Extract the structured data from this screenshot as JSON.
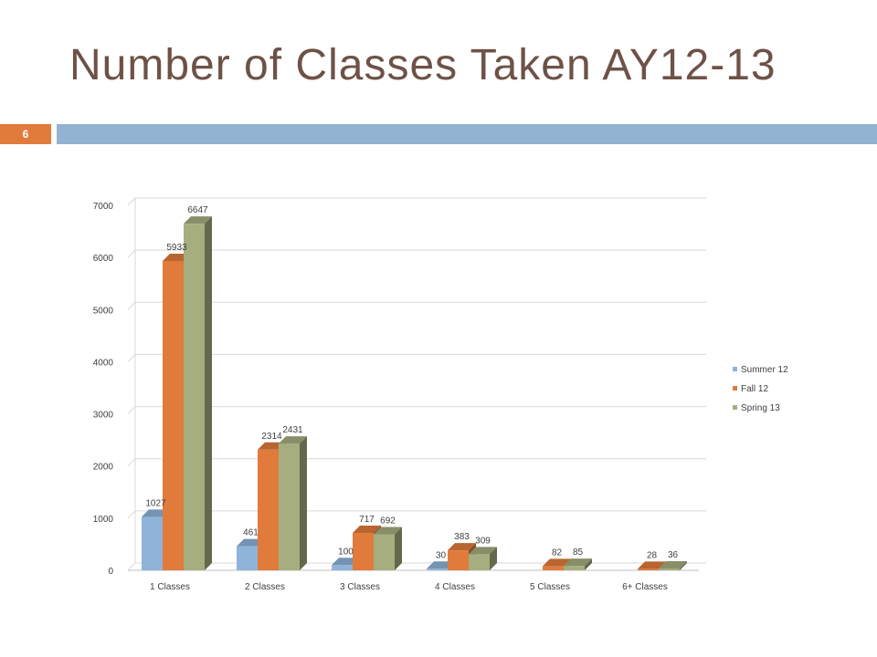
{
  "slide": {
    "title": "Number of Classes Taken AY12-13",
    "page_number": "6",
    "accent_color": "#e07b3c",
    "bar_color": "#93b3d2",
    "title_color": "#6e5247"
  },
  "chart_data": {
    "type": "bar",
    "title": "",
    "xlabel": "",
    "ylabel": "",
    "categories": [
      "1  Classes",
      "2  Classes",
      "3  Classes",
      "4  Classes",
      "5  Classes",
      "6+ Classes"
    ],
    "series": [
      {
        "name": "Summer 12",
        "color": "#8fb3d9",
        "values": [
          1027,
          461,
          100,
          30,
          null,
          null
        ]
      },
      {
        "name": "Fall 12",
        "color": "#e07b3c",
        "values": [
          5933,
          2314,
          717,
          383,
          82,
          28
        ]
      },
      {
        "name": "Spring 13",
        "color": "#a6ae7f",
        "values": [
          6647,
          2431,
          692,
          309,
          85,
          36
        ]
      }
    ],
    "yticks": [
      0,
      1000,
      2000,
      3000,
      4000,
      5000,
      6000,
      7000
    ],
    "ylim": [
      0,
      7000
    ],
    "grid": true,
    "legend": "right",
    "style": "3d-column"
  }
}
